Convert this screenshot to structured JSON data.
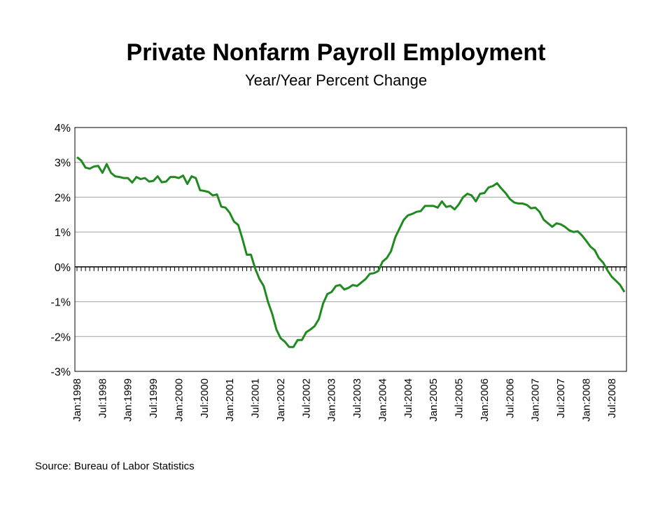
{
  "chart_data": {
    "type": "line",
    "title": "Private Nonfarm Payroll Employment",
    "subtitle": "Year/Year Percent Change",
    "source": "Source:  Bureau of Labor Statistics",
    "categories": [
      "Jan:1998",
      null,
      null,
      null,
      null,
      null,
      "Jul:1998",
      null,
      null,
      null,
      null,
      null,
      "Jan:1999",
      null,
      null,
      null,
      null,
      null,
      "Jul:1999",
      null,
      null,
      null,
      null,
      null,
      "Jan:2000",
      null,
      null,
      null,
      null,
      null,
      "Jul:2000",
      null,
      null,
      null,
      null,
      null,
      "Jan:2001",
      null,
      null,
      null,
      null,
      null,
      "Jul:2001",
      null,
      null,
      null,
      null,
      null,
      "Jan:2002",
      null,
      null,
      null,
      null,
      null,
      "Jul:2002",
      null,
      null,
      null,
      null,
      null,
      "Jan:2003",
      null,
      null,
      null,
      null,
      null,
      "Jul:2003",
      null,
      null,
      null,
      null,
      null,
      "Jan:2004",
      null,
      null,
      null,
      null,
      null,
      "Jul:2004",
      null,
      null,
      null,
      null,
      null,
      "Jan:2005",
      null,
      null,
      null,
      null,
      null,
      "Jul:2005",
      null,
      null,
      null,
      null,
      null,
      "Jan:2006",
      null,
      null,
      null,
      null,
      null,
      "Jul:2006",
      null,
      null,
      null,
      null,
      null,
      "Jan:2007",
      null,
      null,
      null,
      null,
      null,
      "Jul:2007",
      null,
      null,
      null,
      null,
      null,
      "Jan:2008",
      null,
      null,
      null,
      null,
      null,
      "Jul:2008",
      null,
      null,
      null
    ],
    "values": [
      3.15,
      3.05,
      2.85,
      2.82,
      2.88,
      2.9,
      2.7,
      2.95,
      2.7,
      2.6,
      2.58,
      2.55,
      2.55,
      2.42,
      2.58,
      2.52,
      2.55,
      2.45,
      2.47,
      2.6,
      2.43,
      2.45,
      2.58,
      2.58,
      2.55,
      2.62,
      2.38,
      2.6,
      2.55,
      2.2,
      2.18,
      2.15,
      2.05,
      2.08,
      1.73,
      1.7,
      1.55,
      1.3,
      1.2,
      0.8,
      0.35,
      0.35,
      -0.05,
      -0.35,
      -0.55,
      -1.0,
      -1.35,
      -1.8,
      -2.05,
      -2.15,
      -2.3,
      -2.3,
      -2.1,
      -2.1,
      -1.88,
      -1.8,
      -1.7,
      -1.5,
      -1.05,
      -0.78,
      -0.72,
      -0.55,
      -0.52,
      -0.65,
      -0.6,
      -0.52,
      -0.55,
      -0.45,
      -0.35,
      -0.2,
      -0.18,
      -0.12,
      0.15,
      0.25,
      0.45,
      0.85,
      1.1,
      1.35,
      1.48,
      1.52,
      1.58,
      1.6,
      1.75,
      1.75,
      1.75,
      1.7,
      1.88,
      1.72,
      1.75,
      1.65,
      1.8,
      2.0,
      2.1,
      2.05,
      1.88,
      2.1,
      2.12,
      2.28,
      2.32,
      2.4,
      2.25,
      2.12,
      1.95,
      1.85,
      1.82,
      1.82,
      1.78,
      1.68,
      1.7,
      1.58,
      1.35,
      1.25,
      1.15,
      1.25,
      1.22,
      1.15,
      1.05,
      1.0,
      1.02,
      0.9,
      0.75,
      0.58,
      0.48,
      0.25,
      0.12,
      -0.1,
      -0.28,
      -0.4,
      -0.52,
      -0.72
    ],
    "color": "#1f8a1f",
    "ylim": [
      -3,
      4
    ],
    "yticks": [
      {
        "value": -3,
        "label": "-3%"
      },
      {
        "value": -2,
        "label": "-2%"
      },
      {
        "value": -1,
        "label": "-1%"
      },
      {
        "value": 0,
        "label": "0%"
      },
      {
        "value": 1,
        "label": "1%"
      },
      {
        "value": 2,
        "label": "2%"
      },
      {
        "value": 3,
        "label": "3%"
      },
      {
        "value": 4,
        "label": "4%"
      }
    ],
    "grid": true
  }
}
